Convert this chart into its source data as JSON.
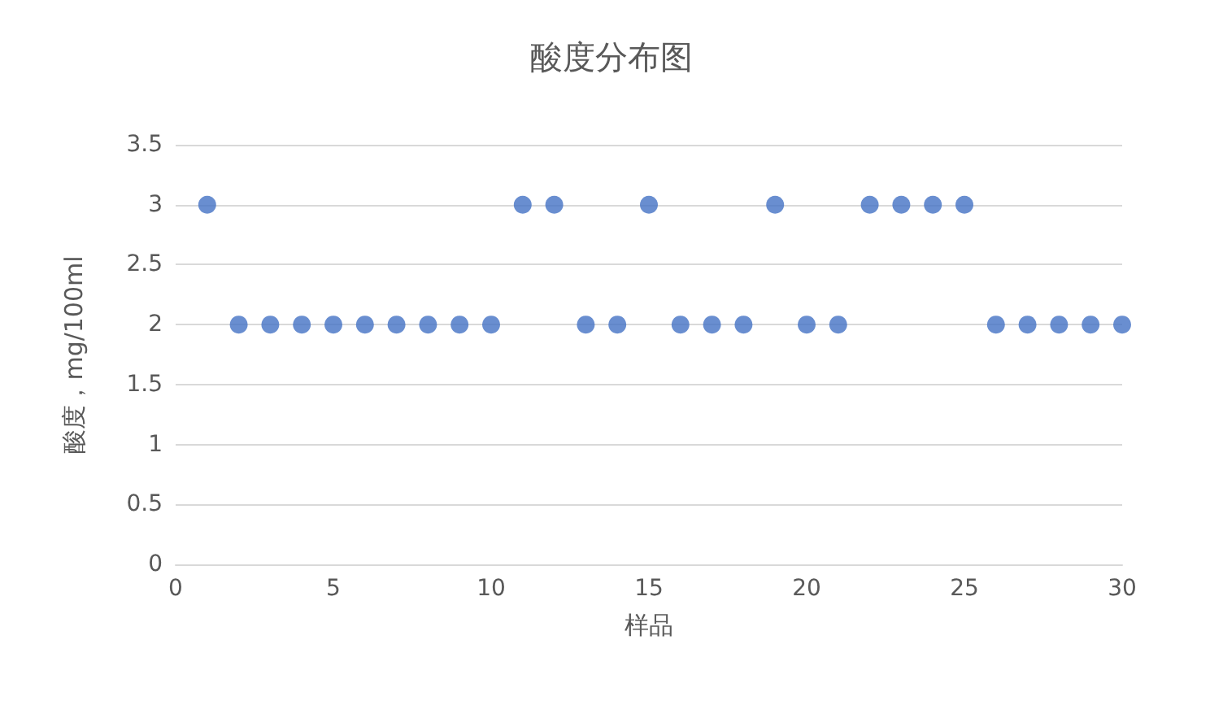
{
  "chart_data": {
    "type": "scatter",
    "title": "酸度分布图",
    "xlabel": "样品",
    "ylabel": "酸度，mg/100ml",
    "x": [
      1,
      2,
      3,
      4,
      5,
      6,
      7,
      8,
      9,
      10,
      11,
      12,
      13,
      14,
      15,
      16,
      17,
      18,
      19,
      20,
      21,
      22,
      23,
      24,
      25,
      26,
      27,
      28,
      29,
      30
    ],
    "series": [
      {
        "color": "#4472c4",
        "values": [
          3,
          2,
          2,
          2,
          2,
          2,
          2,
          2,
          2,
          2,
          3,
          3,
          2,
          2,
          3,
          2,
          2,
          2,
          3,
          2,
          2,
          3,
          3,
          3,
          3,
          2,
          2,
          2,
          2,
          2
        ]
      }
    ],
    "xlim": [
      0,
      30
    ],
    "xticks": [
      0,
      5,
      10,
      15,
      20,
      25,
      30
    ],
    "ylim": [
      0,
      3.5
    ],
    "yticks": [
      0,
      0.5,
      1,
      1.5,
      2,
      2.5,
      3,
      3.5
    ],
    "grid": "y",
    "marker": "circle"
  }
}
